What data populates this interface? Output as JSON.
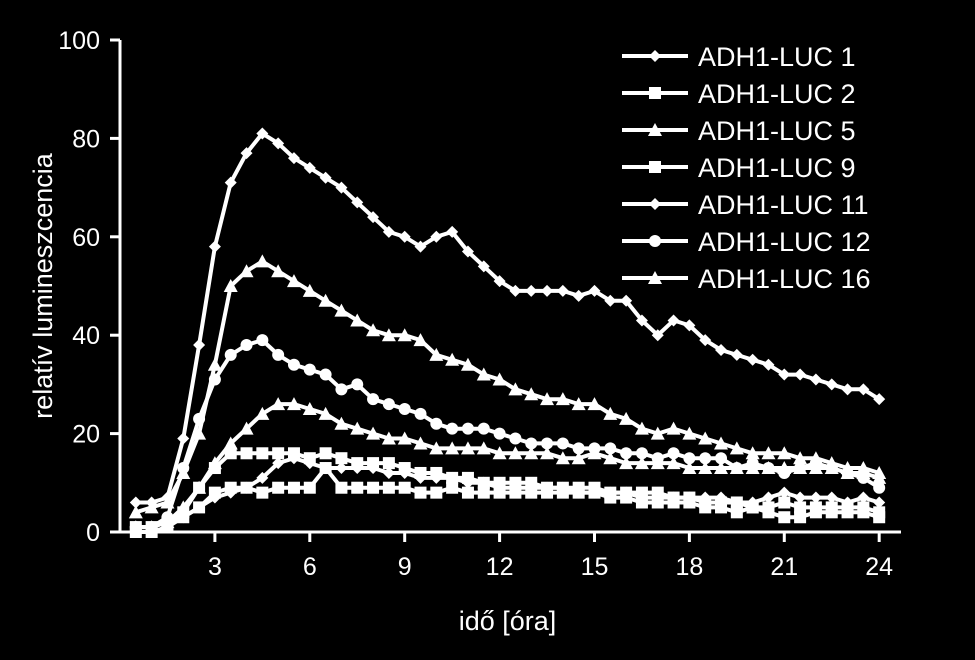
{
  "chart_data": {
    "type": "line",
    "xlabel": "idő [óra]",
    "ylabel": "relatív lumineszcencia",
    "xlim": [
      0,
      24.5
    ],
    "ylim": [
      0,
      100
    ],
    "x_ticks": [
      3,
      6,
      9,
      12,
      15,
      18,
      21,
      24
    ],
    "y_ticks": [
      0,
      20,
      40,
      60,
      80,
      100
    ],
    "grid": false,
    "legend_position": "top-right",
    "x": [
      0.5,
      1,
      1.5,
      2,
      2.5,
      3,
      3.5,
      4,
      4.5,
      5,
      5.5,
      6,
      6.5,
      7,
      7.5,
      8,
      8.5,
      9,
      9.5,
      10,
      10.5,
      11,
      11.5,
      12,
      12.5,
      13,
      13.5,
      14,
      14.5,
      15,
      15.5,
      16,
      16.5,
      17,
      17.5,
      18,
      18.5,
      19,
      19.5,
      20,
      20.5,
      21,
      21.5,
      22,
      22.5,
      23,
      23.5,
      24
    ],
    "series": [
      {
        "name": "ADH1-LUC 1",
        "marker": "diamond",
        "values": [
          6,
          6,
          7,
          19,
          38,
          58,
          71,
          77,
          81,
          79,
          76,
          74,
          72,
          70,
          67,
          64,
          61,
          60,
          58,
          60,
          61,
          57,
          54,
          51,
          49,
          49,
          49,
          49,
          48,
          49,
          47,
          47,
          43,
          40,
          43,
          42,
          39,
          37,
          36,
          35,
          34,
          32,
          32,
          31,
          30,
          29,
          29,
          27
        ]
      },
      {
        "name": "ADH1-LUC 2",
        "marker": "square",
        "values": [
          1,
          1,
          2,
          3,
          5,
          8,
          9,
          9,
          8,
          9,
          9,
          9,
          13,
          9,
          9,
          9,
          9,
          9,
          8,
          8,
          9,
          8,
          8,
          8,
          8,
          8,
          8,
          8,
          8,
          8,
          7,
          7,
          6,
          6,
          6,
          6,
          5,
          5,
          4,
          5,
          4,
          3,
          3,
          4,
          4,
          4,
          4,
          3
        ]
      },
      {
        "name": "ADH1-LUC 5",
        "marker": "triangle",
        "values": [
          4,
          5,
          6,
          12,
          20,
          34,
          50,
          53,
          55,
          53,
          51,
          49,
          47,
          45,
          43,
          41,
          40,
          40,
          39,
          36,
          35,
          34,
          32,
          31,
          29,
          28,
          27,
          27,
          26,
          26,
          24,
          23,
          21,
          20,
          21,
          20,
          19,
          18,
          17,
          16,
          16,
          16,
          15,
          15,
          14,
          13,
          13,
          12
        ]
      },
      {
        "name": "ADH1-LUC 9",
        "marker": "square",
        "values": [
          0,
          0,
          1,
          4,
          9,
          13,
          16,
          16,
          16,
          16,
          16,
          15,
          16,
          15,
          14,
          14,
          14,
          13,
          12,
          12,
          11,
          11,
          10,
          10,
          10,
          10,
          9,
          9,
          9,
          9,
          8,
          8,
          8,
          8,
          7,
          7,
          6,
          6,
          6,
          5,
          5,
          6,
          5,
          5,
          5,
          5,
          5,
          4
        ]
      },
      {
        "name": "ADH1-LUC 11",
        "marker": "diamond",
        "values": [
          0,
          0,
          1,
          3,
          5,
          7,
          8,
          9,
          11,
          14,
          15,
          14,
          13,
          13,
          13,
          13,
          12,
          12,
          11,
          11,
          11,
          10,
          10,
          9,
          9,
          9,
          9,
          9,
          8,
          8,
          8,
          8,
          7,
          7,
          7,
          7,
          7,
          7,
          6,
          6,
          7,
          8,
          7,
          7,
          7,
          6,
          7,
          6
        ]
      },
      {
        "name": "ADH1-LUC 12",
        "marker": "circle",
        "values": [
          1,
          1,
          3,
          13,
          23,
          31,
          36,
          38,
          39,
          36,
          34,
          33,
          32,
          29,
          30,
          27,
          26,
          25,
          24,
          22,
          21,
          21,
          21,
          20,
          19,
          18,
          18,
          18,
          17,
          17,
          17,
          16,
          16,
          15,
          16,
          15,
          15,
          15,
          13,
          14,
          13,
          12,
          13,
          14,
          13,
          12,
          11,
          9
        ]
      },
      {
        "name": "ADH1-LUC 16",
        "marker": "triangle",
        "values": [
          1,
          1,
          2,
          5,
          9,
          14,
          18,
          21,
          24,
          26,
          26,
          25,
          24,
          22,
          21,
          20,
          19,
          19,
          18,
          17,
          17,
          17,
          17,
          16,
          16,
          16,
          16,
          15,
          15,
          16,
          15,
          14,
          14,
          14,
          14,
          13,
          13,
          13,
          13,
          13,
          13,
          13,
          13,
          13,
          13,
          12,
          12,
          11
        ]
      }
    ]
  }
}
